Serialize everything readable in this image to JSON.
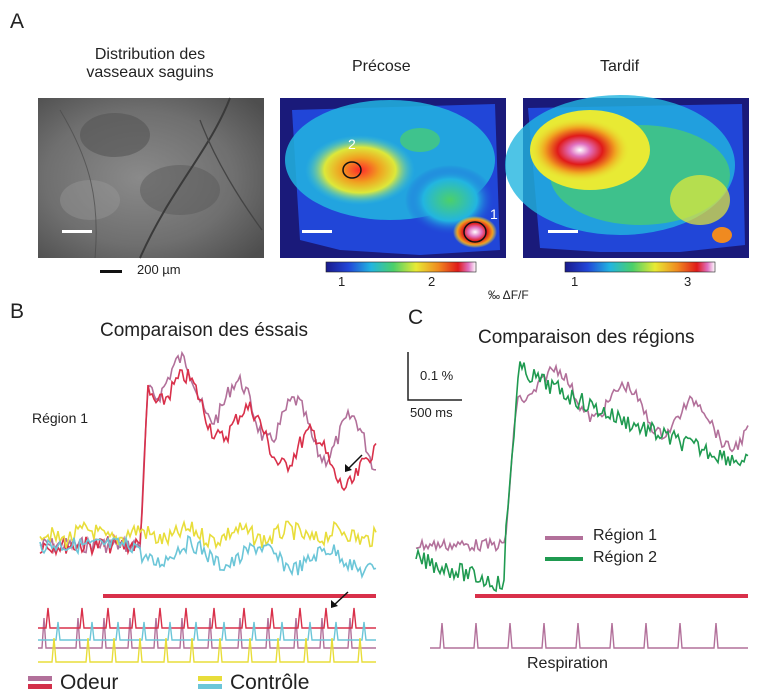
{
  "panel_a": {
    "letter": "A",
    "titles": {
      "vessels": "Distribution des vasseaux saguins",
      "vessels_line1": "Distribution des",
      "vessels_line2": "vasseaux saguins",
      "early": "Précose",
      "late": "Tardif"
    },
    "scale_bar_label": "200 µm",
    "roi_labels": [
      "2",
      "1"
    ],
    "colorbar_early_ticks": [
      "1",
      "2"
    ],
    "colorbar_late_ticks": [
      "1",
      "3"
    ],
    "colorbar_unit": "‰ ΔF/F"
  },
  "panel_b": {
    "letter": "B",
    "title": "Comparaison des éssais",
    "region_label": "Région 1",
    "legend": {
      "odor": "Odeur",
      "control": "Contrôle",
      "odor_colors": [
        "#b2709a",
        "#d3304a"
      ],
      "control_colors": [
        "#e8dd3a",
        "#6cc6d8"
      ]
    }
  },
  "panel_c": {
    "letter": "C",
    "title": "Comparaison des régions",
    "scale_y": "0.1 %",
    "scale_x": "500 ms",
    "legend": [
      {
        "label": "Région 1",
        "color": "#b2709a"
      },
      {
        "label": "Région 2",
        "color": "#1f9a50"
      }
    ],
    "respiration_label": "Respiration"
  },
  "colors": {
    "odor_bar": "#d9304a",
    "region1": "#b2709a",
    "region2": "#1f9a50",
    "control_yellow": "#e8dd3a",
    "control_cyan": "#6cc6d8"
  }
}
